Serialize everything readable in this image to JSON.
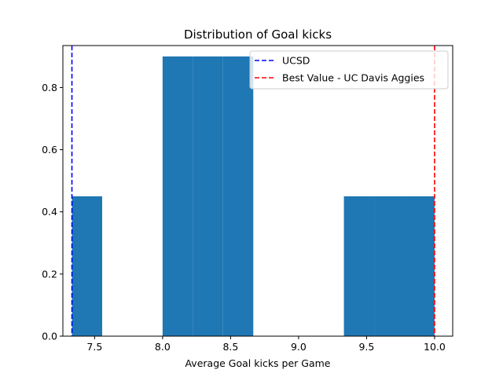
{
  "chart_data": {
    "type": "bar",
    "title": "Distribution of Goal kicks",
    "xlabel": "Average Goal kicks per Game",
    "ylabel": "",
    "xlim": [
      7.2667,
      10.1333
    ],
    "ylim": [
      0,
      0.935
    ],
    "xticks": [
      7.5,
      8.0,
      8.5,
      9.0,
      9.5,
      10.0
    ],
    "xtick_labels": [
      "7.5",
      "8.0",
      "8.5",
      "9.0",
      "9.5",
      "10.0"
    ],
    "yticks": [
      0.0,
      0.2,
      0.4,
      0.6,
      0.8
    ],
    "ytick_labels": [
      "0.0",
      "0.2",
      "0.4",
      "0.6",
      "0.8"
    ],
    "bins": [
      {
        "x0": 7.3333,
        "x1": 7.5556,
        "value": 0.45
      },
      {
        "x0": 7.5556,
        "x1": 7.7778,
        "value": 0.0
      },
      {
        "x0": 7.7778,
        "x1": 8.0,
        "value": 0.0
      },
      {
        "x0": 8.0,
        "x1": 8.2222,
        "value": 0.9
      },
      {
        "x0": 8.2222,
        "x1": 8.4444,
        "value": 0.9
      },
      {
        "x0": 8.4444,
        "x1": 8.6667,
        "value": 0.9
      },
      {
        "x0": 8.6667,
        "x1": 8.8889,
        "value": 0.0
      },
      {
        "x0": 8.8889,
        "x1": 9.1111,
        "value": 0.0
      },
      {
        "x0": 9.1111,
        "x1": 9.3333,
        "value": 0.0
      },
      {
        "x0": 9.3333,
        "x1": 9.5556,
        "value": 0.45
      },
      {
        "x0": 9.5556,
        "x1": 9.7778,
        "value": 0.45
      },
      {
        "x0": 9.7778,
        "x1": 10.0,
        "value": 0.45
      }
    ],
    "bar_color": "#1f77b4",
    "reference_lines": [
      {
        "name": "UCSD",
        "x": 7.3333,
        "color": "#0000ff",
        "style": "dashed"
      },
      {
        "name": "Best Value - UC Davis Aggies",
        "x": 10.0,
        "color": "#ff0000",
        "style": "dashed"
      }
    ],
    "legend_position": "top-right",
    "grid": false
  }
}
